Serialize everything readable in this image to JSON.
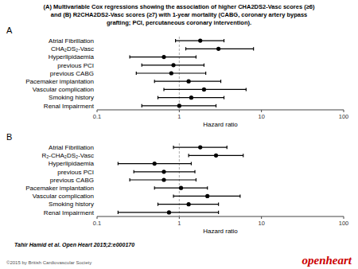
{
  "title": [
    "(A) Multivariable Cox regressions showing the association of higher CHA2DS2-Vasc scores (≥6)",
    "and (B) R2CHA2DS2-Vasc scores (≥7) with 1-year mortality (CABG, coronary artery bypass",
    "grafting; PCI, percutaneous coronary intervention)."
  ],
  "annotations": [
    {
      "text": "Tahir Hamid et al. Open Heart 2015;2:e000170"
    },
    {
      "text": "©2015 by British Cardiovascular Society"
    },
    {
      "text": "openheart",
      "color": "#cc0000"
    }
  ],
  "chart_data": [
    {
      "type": "forest",
      "title": "A",
      "categories": [
        "Atrial Fibrillation",
        "CHA₂DS₂-Vasc",
        "Hyperlipidaemia",
        "previous PCI",
        "previous CABG",
        "Pacemaker implantation",
        "Vascular complication",
        "Smoking history",
        "Renal Impairment"
      ],
      "values": [
        1.8,
        3.0,
        0.65,
        0.85,
        0.8,
        1.3,
        2.0,
        1.4,
        1.0
      ],
      "lo": [
        0.9,
        1.2,
        0.25,
        0.35,
        0.3,
        0.5,
        0.65,
        0.55,
        0.35
      ],
      "hi": [
        3.5,
        8.0,
        1.6,
        2.0,
        2.1,
        3.2,
        6.5,
        3.5,
        2.8
      ],
      "reference_x": 1.0,
      "x_label": "Hazard ratio",
      "log": "x",
      "xlim": [
        0.1,
        100
      ],
      "xticks": [
        0.1,
        1,
        10,
        100
      ],
      "color": "#000000",
      "grid": false
    },
    {
      "type": "forest",
      "title": "B",
      "categories": [
        "Atrial Fibrillation",
        "R₂-CHA₂DS₂-Vasc",
        "Hyperlipidaemia",
        "previous PCI",
        "previous CABG",
        "Pacemaker implantation",
        "Vascular complication",
        "Smoking history",
        "Renal Impairment"
      ],
      "values": [
        1.8,
        2.8,
        0.5,
        0.65,
        0.65,
        1.05,
        2.2,
        1.3,
        0.75
      ],
      "lo": [
        0.85,
        1.3,
        0.18,
        0.28,
        0.25,
        0.5,
        0.85,
        0.55,
        0.18
      ],
      "hi": [
        3.8,
        6.0,
        1.4,
        1.55,
        1.6,
        2.2,
        5.5,
        3.0,
        3.0
      ],
      "reference_x": 1.0,
      "x_label": "Hazard ratio",
      "log": "x",
      "xlim": [
        0.1,
        100
      ],
      "xticks": [
        0.1,
        1,
        10,
        100
      ],
      "color": "#000000",
      "grid": false
    }
  ]
}
